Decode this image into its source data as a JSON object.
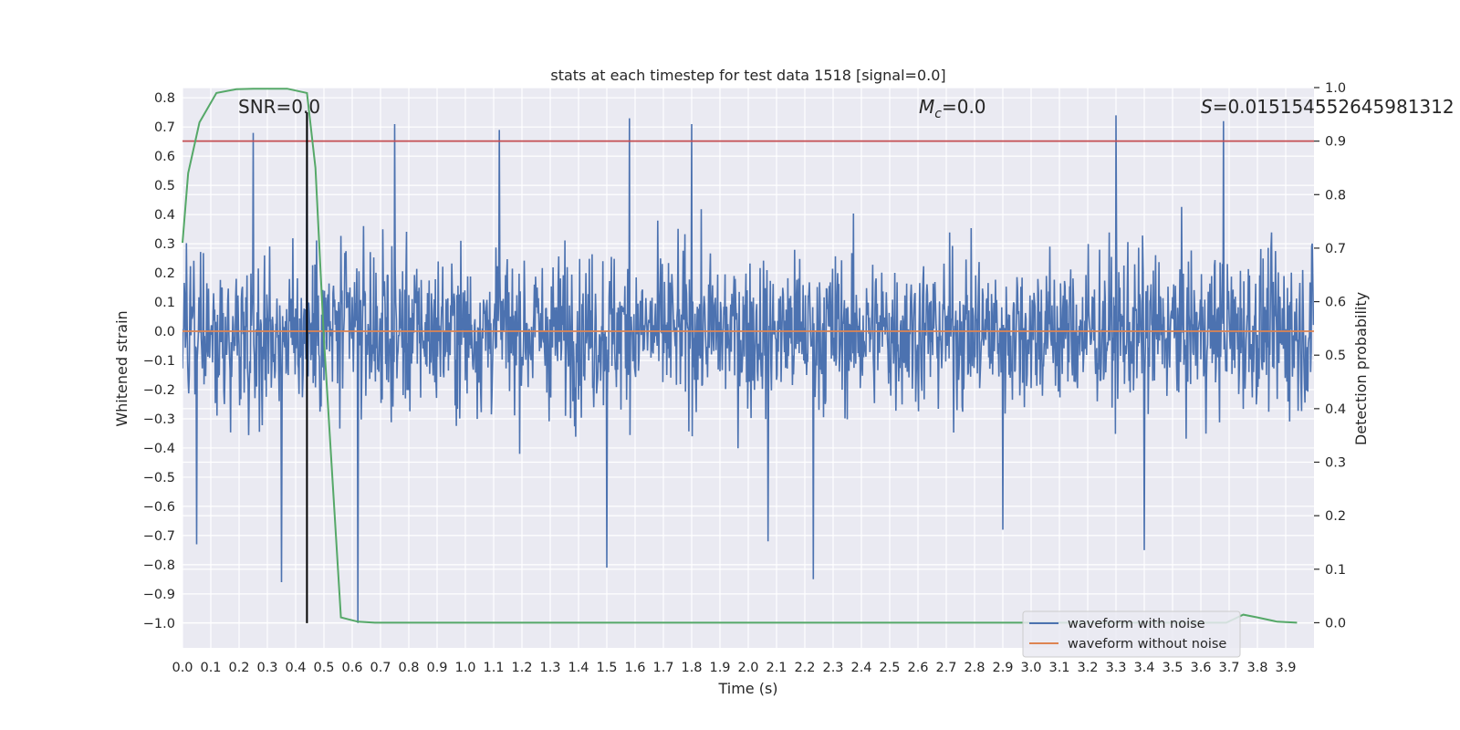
{
  "chart_data": {
    "type": "line",
    "title": "stats at each timestep for test data 1518 [signal=0.0]",
    "xlabel": "Time (s)",
    "ylabel": "Whitened strain",
    "ylabel_right": "Detection probability",
    "xlim": [
      0.0,
      4.0
    ],
    "ylim": [
      -1.085,
      0.835
    ],
    "ylim_right": [
      -0.047,
      1.0
    ],
    "x_ticks": [
      "0.0",
      "0.1",
      "0.2",
      "0.3",
      "0.4",
      "0.5",
      "0.6",
      "0.7",
      "0.8",
      "0.9",
      "1.0",
      "1.1",
      "1.2",
      "1.3",
      "1.4",
      "1.5",
      "1.6",
      "1.7",
      "1.8",
      "1.9",
      "2.0",
      "2.1",
      "2.2",
      "2.3",
      "2.4",
      "2.5",
      "2.6",
      "2.7",
      "2.8",
      "2.9",
      "3.0",
      "3.1",
      "3.2",
      "3.3",
      "3.4",
      "3.5",
      "3.6",
      "3.7",
      "3.8",
      "3.9"
    ],
    "y_ticks": [
      "0.8",
      "0.7",
      "0.6",
      "0.5",
      "0.4",
      "0.3",
      "0.2",
      "0.1",
      "0.0",
      "−0.1",
      "−0.2",
      "−0.3",
      "−0.4",
      "−0.5",
      "−0.6",
      "−0.7",
      "−0.8",
      "−0.9",
      "−1.0"
    ],
    "y_right_ticks": [
      "1.0",
      "0.9",
      "0.8",
      "0.7",
      "0.6",
      "0.5",
      "0.4",
      "0.3",
      "0.2",
      "0.1",
      "0.0"
    ],
    "series": [
      {
        "name": "waveform with noise",
        "color": "#4c72b0",
        "description_kind": "noise",
        "envelope": {
          "typical_abs": 0.25,
          "x_step": 0.002
        },
        "spikes": [
          [
            0.05,
            -0.73
          ],
          [
            0.25,
            0.68
          ],
          [
            0.35,
            -0.86
          ],
          [
            0.44,
            0.75
          ],
          [
            0.62,
            -1.0
          ],
          [
            0.75,
            0.71
          ],
          [
            1.5,
            -0.81
          ],
          [
            1.58,
            0.73
          ],
          [
            1.8,
            0.71
          ],
          [
            2.07,
            -0.72
          ],
          [
            2.23,
            -0.85
          ],
          [
            3.3,
            0.74
          ],
          [
            3.4,
            -0.75
          ],
          [
            3.68,
            0.72
          ],
          [
            2.9,
            -0.68
          ],
          [
            1.12,
            0.69
          ]
        ]
      },
      {
        "name": "waveform without noise",
        "color": "#dd8452",
        "x": [
          0.0,
          4.0
        ],
        "y": [
          0.0,
          0.0
        ]
      },
      {
        "name": "detection probability",
        "color": "#55a868",
        "axis": "right",
        "x": [
          0.0,
          0.02,
          0.06,
          0.12,
          0.19,
          0.25,
          0.31,
          0.37,
          0.44,
          0.47,
          0.5,
          0.56,
          0.62,
          0.68,
          0.75,
          3.69,
          3.75,
          3.8,
          3.87,
          3.94
        ],
        "y": [
          0.71,
          0.84,
          0.935,
          0.99,
          0.997,
          0.998,
          0.998,
          0.998,
          0.99,
          0.85,
          0.53,
          0.01,
          0.002,
          0.0,
          0.0,
          0.0,
          0.015,
          0.01,
          0.002,
          0.0
        ]
      }
    ],
    "hlines": [
      {
        "axis": "right",
        "y": 0.9,
        "color": "#c44e52"
      }
    ],
    "vlines": [
      {
        "x": 0.44,
        "ymin": -1.0,
        "ymax": 0.75,
        "color": "#000000"
      }
    ],
    "annotations": {
      "snr": "SNR=0.0",
      "mc_symbol": "M",
      "mc_sub": "c",
      "mc_value": "=0.0",
      "s_symbol": "S",
      "s_value": "=0.015154552645981312"
    },
    "legend": {
      "location": "lower-right",
      "entries": [
        "waveform with noise",
        "waveform without noise"
      ]
    },
    "grid": true
  }
}
